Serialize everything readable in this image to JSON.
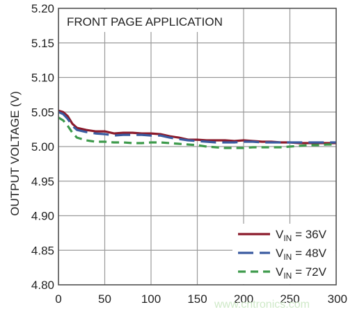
{
  "chart_data": {
    "type": "line",
    "title": "FRONT PAGE APPLICATION",
    "xlabel": "",
    "ylabel": "OUTPUT VOLTAGE (V)",
    "xlim": [
      0,
      300
    ],
    "ylim": [
      4.8,
      5.2
    ],
    "x_ticks": [
      "0",
      "50",
      "100",
      "150",
      "200",
      "250",
      "300"
    ],
    "y_ticks": [
      "5.20",
      "5.15",
      "5.10",
      "5.05",
      "5.00",
      "4.95",
      "4.90",
      "4.85",
      "4.80"
    ],
    "grid": true,
    "legend_position": "bottom-right",
    "series": [
      {
        "name": "V_IN = 36V",
        "legend_main": "V",
        "legend_sub": "IN",
        "legend_rest": " = 36V",
        "color": "#8b1a2b",
        "dash": "solid",
        "x": [
          0,
          5,
          10,
          15,
          20,
          30,
          40,
          50,
          60,
          70,
          80,
          90,
          100,
          110,
          120,
          130,
          140,
          150,
          160,
          170,
          180,
          190,
          200,
          210,
          220,
          230,
          240,
          250,
          260,
          270,
          280,
          290,
          300
        ],
        "y": [
          5.052,
          5.05,
          5.044,
          5.033,
          5.027,
          5.024,
          5.022,
          5.022,
          5.019,
          5.02,
          5.02,
          5.019,
          5.019,
          5.018,
          5.015,
          5.013,
          5.01,
          5.01,
          5.009,
          5.009,
          5.009,
          5.008,
          5.009,
          5.008,
          5.007,
          5.007,
          5.006,
          5.006,
          5.005,
          5.005,
          5.005,
          5.005,
          5.005
        ]
      },
      {
        "name": "V_IN = 48V",
        "legend_main": "V",
        "legend_sub": "IN",
        "legend_rest": " = 48V",
        "color": "#3a5ba0",
        "dash": "long",
        "x": [
          0,
          5,
          10,
          15,
          20,
          30,
          40,
          50,
          60,
          70,
          80,
          90,
          100,
          110,
          120,
          130,
          140,
          150,
          160,
          170,
          180,
          190,
          200,
          210,
          220,
          230,
          240,
          250,
          260,
          270,
          280,
          290,
          300
        ],
        "y": [
          5.05,
          5.047,
          5.04,
          5.03,
          5.024,
          5.021,
          5.019,
          5.018,
          5.016,
          5.017,
          5.017,
          5.017,
          5.016,
          5.016,
          5.013,
          5.011,
          5.009,
          5.008,
          5.007,
          5.006,
          5.006,
          5.006,
          5.007,
          5.007,
          5.006,
          5.006,
          5.006,
          5.006,
          5.006,
          5.006,
          5.006,
          5.006,
          5.006
        ]
      },
      {
        "name": "V_IN = 72V",
        "legend_main": "V",
        "legend_sub": "IN",
        "legend_rest": " = 72V",
        "color": "#3d9a4b",
        "dash": "medium",
        "x": [
          0,
          5,
          10,
          15,
          20,
          30,
          40,
          50,
          60,
          70,
          80,
          90,
          100,
          110,
          120,
          130,
          140,
          150,
          160,
          170,
          180,
          190,
          200,
          210,
          220,
          230,
          240,
          250,
          260,
          270,
          280,
          290,
          300
        ],
        "y": [
          5.042,
          5.038,
          5.03,
          5.02,
          5.013,
          5.009,
          5.007,
          5.007,
          5.006,
          5.006,
          5.005,
          5.005,
          5.006,
          5.006,
          5.005,
          5.004,
          5.003,
          5.002,
          5.0,
          4.999,
          4.998,
          4.998,
          4.998,
          4.999,
          4.999,
          4.999,
          4.999,
          5.0,
          5.001,
          5.002,
          5.002,
          5.003,
          5.003
        ]
      }
    ]
  }
}
